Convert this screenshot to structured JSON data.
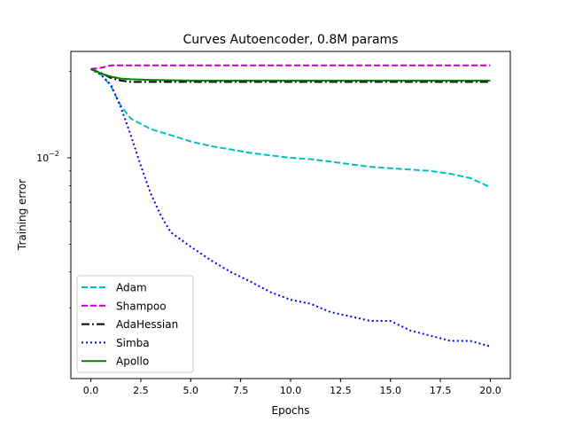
{
  "chart_data": {
    "type": "line",
    "title": "Curves Autoencoder, 0.8M params",
    "xlabel": "Epochs",
    "ylabel": "Training error",
    "xlim": [
      -1,
      21
    ],
    "ylim": [
      0.0017,
      0.0235
    ],
    "yscale": "log",
    "grid": false,
    "legend_position": "lower-left",
    "x_ticks": [
      {
        "value": 0.0,
        "label": "0.0"
      },
      {
        "value": 2.5,
        "label": "2.5"
      },
      {
        "value": 5.0,
        "label": "5.0"
      },
      {
        "value": 7.5,
        "label": "7.5"
      },
      {
        "value": 10.0,
        "label": "10.0"
      },
      {
        "value": 12.5,
        "label": "12.5"
      },
      {
        "value": 15.0,
        "label": "15.0"
      },
      {
        "value": 17.5,
        "label": "17.5"
      },
      {
        "value": 20.0,
        "label": "20.0"
      }
    ],
    "y_ticks": [
      {
        "value": 0.01,
        "base": "10",
        "exponent": "−2"
      }
    ],
    "y_minor_ticks": [
      0.003,
      0.004,
      0.005,
      0.006,
      0.007,
      0.008,
      0.009,
      0.02
    ],
    "series": [
      {
        "name": "Adam",
        "color": "#00bfbf",
        "style": "dashed",
        "x": [
          0,
          0.5,
          1,
          1.5,
          2,
          3,
          4,
          5,
          6,
          7,
          8,
          9,
          10,
          11,
          12,
          13,
          14,
          15,
          16,
          17,
          18,
          19,
          20
        ],
        "y": [
          0.0204,
          0.0196,
          0.0178,
          0.0152,
          0.0137,
          0.0126,
          0.012,
          0.0114,
          0.011,
          0.0107,
          0.0104,
          0.0102,
          0.01,
          0.0099,
          0.0097,
          0.0095,
          0.0093,
          0.0092,
          0.0091,
          0.009,
          0.0088,
          0.0085,
          0.0079
        ]
      },
      {
        "name": "Shampoo",
        "color": "#bf00bf",
        "style": "dashed",
        "x": [
          0,
          0.5,
          1,
          2,
          5,
          10,
          15,
          20
        ],
        "y": [
          0.0204,
          0.0206,
          0.021,
          0.021,
          0.021,
          0.021,
          0.021,
          0.021
        ]
      },
      {
        "name": "AdaHessian",
        "color": "#000000",
        "style": "dashdot",
        "x": [
          0,
          0.5,
          1,
          1.5,
          2,
          3,
          5,
          10,
          15,
          20
        ],
        "y": [
          0.0204,
          0.0198,
          0.019,
          0.0186,
          0.0184,
          0.0184,
          0.0184,
          0.0184,
          0.0184,
          0.0184
        ]
      },
      {
        "name": "Simba",
        "color": "#0000ff",
        "style": "dotted",
        "x": [
          0,
          0.5,
          1,
          1.5,
          2,
          2.5,
          3,
          3.5,
          4,
          5,
          6,
          7,
          8,
          9,
          10,
          11,
          12,
          13,
          14,
          15,
          16,
          17,
          18,
          19,
          20
        ],
        "y": [
          0.0204,
          0.0195,
          0.018,
          0.015,
          0.012,
          0.0094,
          0.0075,
          0.0063,
          0.0055,
          0.0049,
          0.0044,
          0.004,
          0.0037,
          0.0034,
          0.0032,
          0.0031,
          0.0029,
          0.0028,
          0.0027,
          0.0027,
          0.0025,
          0.0024,
          0.0023,
          0.0023,
          0.0022
        ]
      },
      {
        "name": "Apollo",
        "color": "#008000",
        "style": "solid",
        "x": [
          0,
          0.5,
          1,
          1.5,
          2,
          3,
          5,
          10,
          15,
          20
        ],
        "y": [
          0.0204,
          0.0197,
          0.0192,
          0.0189,
          0.0188,
          0.0187,
          0.0186,
          0.0186,
          0.0186,
          0.0186
        ]
      }
    ]
  }
}
